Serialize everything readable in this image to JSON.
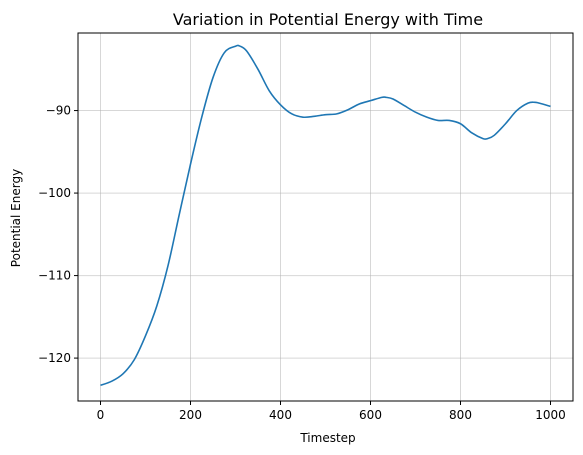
{
  "chart_data": {
    "type": "line",
    "title": "Variation in Potential Energy with Time",
    "xlabel": "Timestep",
    "ylabel": "Potential Energy",
    "xlim": [
      -50,
      1050
    ],
    "ylim": [
      -125.2,
      -80.6
    ],
    "xticks": [
      0,
      200,
      400,
      600,
      800,
      1000
    ],
    "xtick_labels": [
      "0",
      "200",
      "400",
      "600",
      "800",
      "1000"
    ],
    "yticks": [
      -120,
      -110,
      -100,
      -90
    ],
    "ytick_labels": [
      "−120",
      "−110",
      "−100",
      "−90"
    ],
    "grid": true,
    "series": [
      {
        "color": "#1f77b4",
        "x": [
          0,
          25,
          50,
          75,
          100,
          125,
          150,
          175,
          200,
          225,
          250,
          275,
          300,
          310,
          325,
          350,
          375,
          400,
          425,
          450,
          475,
          500,
          525,
          550,
          575,
          600,
          625,
          635,
          650,
          675,
          700,
          725,
          750,
          775,
          800,
          825,
          850,
          860,
          875,
          900,
          925,
          950,
          965,
          975,
          1000
        ],
        "y": [
          -123.3,
          -122.8,
          -121.9,
          -120.2,
          -117.3,
          -113.7,
          -108.8,
          -102.6,
          -96.5,
          -90.8,
          -86.0,
          -83.0,
          -82.2,
          -82.2,
          -82.8,
          -85.0,
          -87.6,
          -89.3,
          -90.4,
          -90.8,
          -90.7,
          -90.5,
          -90.4,
          -89.9,
          -89.2,
          -88.8,
          -88.4,
          -88.4,
          -88.6,
          -89.4,
          -90.2,
          -90.8,
          -91.2,
          -91.2,
          -91.6,
          -92.7,
          -93.4,
          -93.4,
          -93.0,
          -91.6,
          -90.0,
          -89.1,
          -89.0,
          -89.1,
          -89.5
        ]
      }
    ]
  }
}
